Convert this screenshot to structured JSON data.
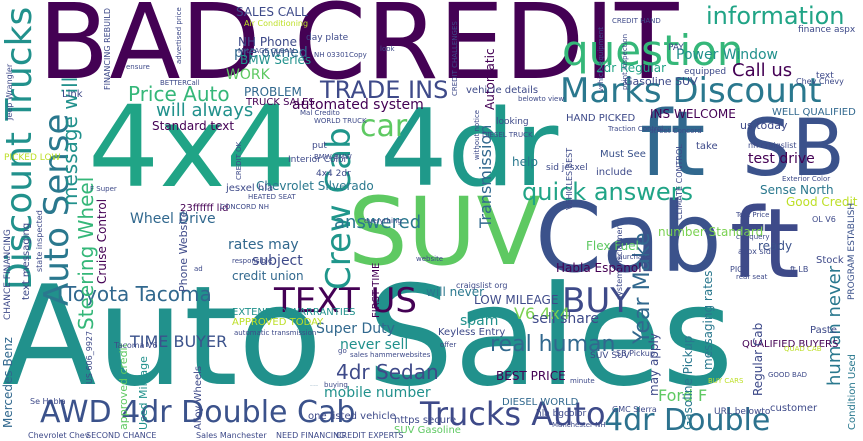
{
  "words": [
    {
      "text": "Auto Sales",
      "color": "#21918c"
    },
    {
      "text": "BAD CREDIT",
      "color": "#440154"
    },
    {
      "text": "4x4",
      "color": "#20a486"
    },
    {
      "text": "4dr",
      "color": "#1f998a"
    },
    {
      "text": "SUV",
      "color": "#5ec962"
    },
    {
      "text": "Cab",
      "color": "#3b528b"
    },
    {
      "text": "SB",
      "color": "#3b528b"
    },
    {
      "text": "ft",
      "color": "#31688e"
    },
    {
      "text": "ft",
      "color": "#3e4a89"
    },
    {
      "text": "question",
      "color": "#35b779"
    },
    {
      "text": "Marks Discount",
      "color": "#2a788e"
    },
    {
      "text": "Discount Trucks",
      "color": "#21918c"
    },
    {
      "text": "Auto Sense",
      "color": "#2a788e"
    },
    {
      "text": "AWD 4dr Double Cab",
      "color": "#3b528b"
    },
    {
      "text": "Trucks Auto",
      "color": "#3e4a89"
    },
    {
      "text": "4dr Double",
      "color": "#2c728e"
    },
    {
      "text": "TEXT US",
      "color": "#440154"
    },
    {
      "text": "BUY",
      "color": "#3e4a89"
    },
    {
      "text": "Crew Cab",
      "color": "#1f968b"
    },
    {
      "text": "Toyota Tacoma",
      "color": "#31688e"
    },
    {
      "text": "quick answers",
      "color": "#20a486"
    },
    {
      "text": "car",
      "color": "#5ec962"
    },
    {
      "text": "information",
      "color": "#20a486"
    },
    {
      "text": "Price Auto",
      "color": "#35b779"
    },
    {
      "text": "TRADE INS",
      "color": "#3e4a89"
    },
    {
      "text": "will always",
      "color": "#21918c"
    },
    {
      "text": "Call us",
      "color": "#440154"
    },
    {
      "text": "real human",
      "color": "#31688e"
    },
    {
      "text": "Year Make",
      "color": "#31688e"
    },
    {
      "text": "4dr Sedan",
      "color": "#3e4a89"
    },
    {
      "text": "Steering Wheel",
      "color": "#35b779"
    },
    {
      "text": "message will",
      "color": "#21918c"
    },
    {
      "text": "answered",
      "color": "#2a788e"
    },
    {
      "text": "Transmission",
      "color": "#31688e"
    },
    {
      "text": "V6 4x4",
      "color": "#7ad151"
    },
    {
      "text": "Ford F",
      "color": "#5ec962"
    },
    {
      "text": "human never",
      "color": "#2a788e"
    },
    {
      "text": "TIME BUYER",
      "color": "#3b528b"
    },
    {
      "text": "pre owned",
      "color": "#31688e"
    },
    {
      "text": "Power Window",
      "color": "#21918c"
    },
    {
      "text": "WORK",
      "color": "#5ec962"
    },
    {
      "text": "test drive",
      "color": "#440154"
    },
    {
      "text": "sell share",
      "color": "#3e4a89"
    },
    {
      "text": "Wheel Drive",
      "color": "#31688e"
    },
    {
      "text": "Super Duty",
      "color": "#31688e"
    },
    {
      "text": "never sell",
      "color": "#21918c"
    },
    {
      "text": "mobile number",
      "color": "#21918c"
    },
    {
      "text": "CLEAN VEHICLE",
      "color": "#31688e"
    },
    {
      "text": "rates may",
      "color": "#31688e"
    },
    {
      "text": "subject",
      "color": "#3e4a89"
    },
    {
      "text": "credit union",
      "color": "#31688e"
    },
    {
      "text": "Chevrolet Silverado",
      "color": "#2a788e"
    },
    {
      "text": "automated system",
      "color": "#440154"
    },
    {
      "text": "Standard text",
      "color": "#440154"
    },
    {
      "text": "BMW Series",
      "color": "#21918c"
    },
    {
      "text": "NH Phone",
      "color": "#3e4a89"
    },
    {
      "text": "SALES CALL",
      "color": "#3e4a89"
    },
    {
      "text": "PROBLEM",
      "color": "#31688e"
    },
    {
      "text": "TRUCK SALES",
      "color": "#440154"
    },
    {
      "text": "spam",
      "color": "#21918c"
    },
    {
      "text": "BEST PRICE",
      "color": "#440154"
    },
    {
      "text": "LOW MILEAGE",
      "color": "#3e4a89"
    },
    {
      "text": "will never",
      "color": "#2a788e"
    },
    {
      "text": "Flex Fuel",
      "color": "#5ec962"
    },
    {
      "text": "number Standard",
      "color": "#7ad151"
    },
    {
      "text": "Habla Espanol",
      "color": "#440154"
    },
    {
      "text": "INS WELCOME",
      "color": "#440154"
    },
    {
      "text": "HAND PICKED",
      "color": "#3e4a89"
    },
    {
      "text": "WELL QUALIFIED",
      "color": "#31688e"
    },
    {
      "text": "QUALIFIED BUYERS",
      "color": "#440154"
    },
    {
      "text": "Sense North",
      "color": "#2a788e"
    },
    {
      "text": "Good Credit",
      "color": "#bddf26"
    },
    {
      "text": "ready",
      "color": "#3b528b"
    },
    {
      "text": "help",
      "color": "#2a788e"
    },
    {
      "text": "Automatic",
      "color": "#440154"
    },
    {
      "text": "2dr Regular",
      "color": "#20a486"
    },
    {
      "text": "Gasoline SUV",
      "color": "#3e4a89"
    },
    {
      "text": "us today",
      "color": "#3e4a89"
    },
    {
      "text": "Must See",
      "color": "#3b528b"
    },
    {
      "text": "take",
      "color": "#3e4a89"
    },
    {
      "text": "include",
      "color": "#3e4a89"
    },
    {
      "text": "Mercedes Benz",
      "color": "#31688e"
    },
    {
      "text": "Cruise Control",
      "color": "#440154"
    },
    {
      "text": "Phone Website",
      "color": "#3e4a89"
    },
    {
      "text": "EXTENDED WARRANTIES",
      "color": "#21918c"
    },
    {
      "text": "APPROVED TODAY",
      "color": "#bddf26"
    },
    {
      "text": "FIRST TIME",
      "color": "#440154"
    },
    {
      "text": "Keyless Entry",
      "color": "#3e4a89"
    },
    {
      "text": "Gasoline Pickup",
      "color": "#2a788e"
    },
    {
      "text": "messaging rates",
      "color": "#2a788e"
    },
    {
      "text": "may apply",
      "color": "#3e4a89"
    },
    {
      "text": "Regular Cab",
      "color": "#3e4a89"
    },
    {
      "text": "Used Mileage",
      "color": "#21918c"
    },
    {
      "text": "approved credit",
      "color": "#5ec962"
    },
    {
      "text": "Alloy Wheels",
      "color": "#3e4a89"
    },
    {
      "text": "one listed vehicle",
      "color": "#3e4a89"
    },
    {
      "text": "https secure",
      "color": "#3e4a89"
    },
    {
      "text": "SUV Gasoline",
      "color": "#5ec962"
    },
    {
      "text": "DIESEL WORLD",
      "color": "#31688e"
    },
    {
      "text": "customer",
      "color": "#3e4a89"
    },
    {
      "text": "Condition Used",
      "color": "#2a788e"
    },
    {
      "text": "PROGRAM ESTABLISH",
      "color": "#3b528b"
    },
    {
      "text": "Paste",
      "color": "#3e4a89"
    },
    {
      "text": "Stock",
      "color": "#3e4a89"
    },
    {
      "text": "sid jesxel",
      "color": "#3e4a89"
    },
    {
      "text": "SB Pickup",
      "color": "#3e4a89"
    },
    {
      "text": "GMC Sierra",
      "color": "#3e4a89"
    },
    {
      "text": "SUV SUV",
      "color": "#3e4a89"
    },
    {
      "text": "Tacoma V6",
      "color": "#3e4a89"
    },
    {
      "text": "text messaging",
      "color": "#3e4a89"
    },
    {
      "text": "Link",
      "color": "#3e4a89"
    },
    {
      "text": "PICKED LOW",
      "color": "#bddf26"
    },
    {
      "text": "CHANCE FINANCING",
      "color": "#3e4a89"
    },
    {
      "text": "CREDIT EXPERTS",
      "color": "#3e4a89"
    },
    {
      "text": "NEED FINANCING",
      "color": "#3e4a89"
    },
    {
      "text": "SECOND CHANCE",
      "color": "#3e4a89"
    },
    {
      "text": "Sales Manchester",
      "color": "#3e4a89"
    },
    {
      "text": "Chevrolet Chev",
      "color": "#3e4a89"
    },
    {
      "text": "Se Habla",
      "color": "#3e4a89"
    },
    {
      "text": "US 606_9927",
      "color": "#3e4a89"
    },
    {
      "text": "23ffffff lid",
      "color": "#440154"
    },
    {
      "text": "jesxel hla",
      "color": "#3e4a89"
    },
    {
      "text": "vehicle details",
      "color": "#3e4a89"
    },
    {
      "text": "looking",
      "color": "#3e4a89"
    },
    {
      "text": "Interior Color",
      "color": "#3e4a89"
    },
    {
      "text": "4x4 2dr",
      "color": "#3e4a89"
    },
    {
      "text": "put",
      "color": "#3e4a89"
    },
    {
      "text": "BMW BMW",
      "color": "#3e4a89"
    },
    {
      "text": "Mal Credito",
      "color": "#3e4a89"
    },
    {
      "text": "VEHICLES BEST",
      "color": "#3e4a89"
    },
    {
      "text": "CLIMATE CONTROL",
      "color": "#3e4a89"
    },
    {
      "text": "day plate",
      "color": "#3e4a89"
    },
    {
      "text": "CREDIT HAND",
      "color": "#3e4a89"
    },
    {
      "text": "PAY",
      "color": "#3e4a89"
    },
    {
      "text": "equipped",
      "color": "#3e4a89"
    },
    {
      "text": "finance aspx",
      "color": "#3e4a89"
    },
    {
      "text": "Chev Chevy",
      "color": "#3e4a89"
    },
    {
      "text": "text",
      "color": "#3e4a89"
    },
    {
      "text": "Exterior Color",
      "color": "#3e4a89"
    },
    {
      "text": "OL V6",
      "color": "#3e4a89"
    },
    {
      "text": "Text Price",
      "color": "#3e4a89"
    },
    {
      "text": "ctd query",
      "color": "#3e4a89"
    },
    {
      "text": "aspx sid",
      "color": "#3e4a89"
    },
    {
      "text": "ft LB",
      "color": "#3e4a89"
    },
    {
      "text": "PICK",
      "color": "#3e4a89"
    },
    {
      "text": "rear seat",
      "color": "#3e4a89"
    },
    {
      "text": "BUY CARS",
      "color": "#bddf26"
    },
    {
      "text": "GOOD BAD",
      "color": "#3e4a89"
    },
    {
      "text": "QUAD CAB",
      "color": "#bddf26"
    },
    {
      "text": "minute",
      "color": "#3e4a89"
    },
    {
      "text": "hla bgcolor",
      "color": "#3e4a89"
    },
    {
      "text": "URL belowto",
      "color": "#3e4a89"
    },
    {
      "text": "craigslist org",
      "color": "#3e4a89"
    },
    {
      "text": "nh craigslist",
      "color": "#3e4a89"
    },
    {
      "text": "purchase",
      "color": "#3e4a89"
    },
    {
      "text": "website",
      "color": "#3e4a89"
    },
    {
      "text": "everything",
      "color": "#3e4a89"
    },
    {
      "text": "responsible",
      "color": "#3e4a89"
    },
    {
      "text": "automatic transmission",
      "color": "#3e4a89"
    },
    {
      "text": "sales hammerwebsites",
      "color": "#3e4a89"
    },
    {
      "text": "offer",
      "color": "#3e4a89"
    },
    {
      "text": "buying",
      "color": "#3e4a89"
    },
    {
      "text": "go",
      "color": "#3e4a89"
    },
    {
      "text": "state inspected",
      "color": "#3e4a89"
    },
    {
      "text": "CONCORD NH",
      "color": "#3e4a89"
    },
    {
      "text": "HEATED SEAT",
      "color": "#3e4a89"
    },
    {
      "text": "ad",
      "color": "#3e4a89"
    },
    {
      "text": "Jeep Wrangler",
      "color": "#3e4a89"
    },
    {
      "text": "FINANCING REBUILD",
      "color": "#3e4a89"
    },
    {
      "text": "MILEAGE CLEAN",
      "color": "#3e4a89"
    },
    {
      "text": "NH 03301Copy",
      "color": "#3e4a89"
    },
    {
      "text": "Air Conditioning",
      "color": "#bddf26"
    },
    {
      "text": "advertised price",
      "color": "#3e4a89"
    },
    {
      "text": "CREDIT CHALLENGES",
      "color": "#3e4a89"
    },
    {
      "text": "vehicle equipment",
      "color": "#3e4a89"
    },
    {
      "text": "point inspection",
      "color": "#3e4a89"
    },
    {
      "text": "street Concord",
      "color": "#3e4a89"
    },
    {
      "text": "Traction Control",
      "color": "#3e4a89"
    },
    {
      "text": "WORLD TRUCK",
      "color": "#3e4a89"
    },
    {
      "text": "DIESEL TRUCK",
      "color": "#3e4a89"
    },
    {
      "text": "BETTERCall",
      "color": "#3e4a89"
    },
    {
      "text": "without notice",
      "color": "#3e4a89"
    },
    {
      "text": "belowto view",
      "color": "#3e4a89"
    },
    {
      "text": "system Disclaimer",
      "color": "#3e4a89"
    },
    {
      "text": "Manchester NH",
      "color": "#3e4a89"
    },
    {
      "text": "F Super",
      "color": "#3e4a89"
    },
    {
      "text": "look",
      "color": "#3e4a89"
    },
    {
      "text": "ensure",
      "color": "#3e4a89"
    },
    {
      "text": "CREDIT OK",
      "color": "#3e4a89"
    }
  ]
}
